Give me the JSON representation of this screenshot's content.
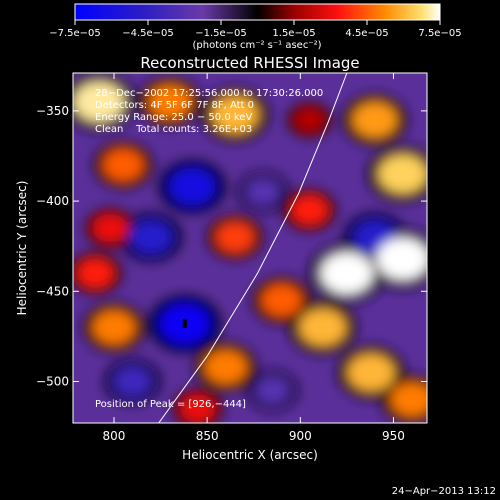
{
  "chart_data": {
    "type": "heatmap",
    "title": "Reconstructed RHESSI Image",
    "xlabel": "Heliocentric X (arcsec)",
    "ylabel": "Heliocentric Y (arcsec)",
    "xlim": [
      778,
      968
    ],
    "ylim": [
      -523,
      -329
    ],
    "x_ticks": [
      800,
      850,
      900,
      950
    ],
    "x_tick_labels": [
      "800",
      "850",
      "900",
      "950"
    ],
    "y_ticks": [
      -350,
      -400,
      -450,
      -500
    ],
    "y_tick_labels": [
      "−350",
      "−400",
      "−450",
      "−500"
    ],
    "colorbar": {
      "range": [
        -7.5e-05,
        7.5e-05
      ],
      "ticks": [
        -7.5e-05,
        -4.5e-05,
        -1.5e-05,
        1.5e-05,
        4.5e-05,
        7.5e-05
      ],
      "tick_labels": [
        "−7.5e−05",
        "−4.5e−05",
        "−1.5e−05",
        "1.5e−05",
        "4.5e−05",
        "7.5e−05"
      ],
      "unit_label": "(photons cm⁻² s⁻¹ asec⁻²)"
    },
    "annotations": [
      "28−Dec−2002 17:25:56.000 to 17:30:26.000",
      "Detectors: 4F 5F 6F 7F 8F, Att 0",
      "Energy Range: 25.0 − 50.0 keV",
      "Clean    Total counts: 3.26E+03"
    ],
    "peak_label": "Position of Peak = [926,−444]",
    "peak_position": [
      926,
      -444
    ],
    "limb": [
      [
        824,
        -523
      ],
      [
        850,
        -486
      ],
      [
        877,
        -440
      ],
      [
        899,
        -396
      ],
      [
        915,
        -356
      ],
      [
        925,
        -329
      ]
    ],
    "blobs": [
      {
        "x": 792,
        "y": -345,
        "v": 7e-05
      },
      {
        "x": 830,
        "y": -345,
        "v": 5e-05
      },
      {
        "x": 865,
        "y": -352,
        "v": 6e-05
      },
      {
        "x": 805,
        "y": -380,
        "v": 4.5e-05
      },
      {
        "x": 842,
        "y": -392,
        "v": -6e-05
      },
      {
        "x": 820,
        "y": -420,
        "v": -5e-05
      },
      {
        "x": 798,
        "y": -415,
        "v": 3e-05
      },
      {
        "x": 865,
        "y": -420,
        "v": 4e-05
      },
      {
        "x": 905,
        "y": -355,
        "v": 2e-05
      },
      {
        "x": 940,
        "y": -355,
        "v": 5.5e-05
      },
      {
        "x": 955,
        "y": -385,
        "v": 6.5e-05
      },
      {
        "x": 940,
        "y": -420,
        "v": -5e-05
      },
      {
        "x": 955,
        "y": -432,
        "v": 7.5e-05
      },
      {
        "x": 925,
        "y": -440,
        "v": 7.5e-05
      },
      {
        "x": 890,
        "y": -455,
        "v": 4.5e-05
      },
      {
        "x": 912,
        "y": -470,
        "v": 6e-05
      },
      {
        "x": 938,
        "y": -495,
        "v": 6e-05
      },
      {
        "x": 885,
        "y": -505,
        "v": -3e-05
      },
      {
        "x": 860,
        "y": -492,
        "v": 5e-05
      },
      {
        "x": 838,
        "y": -468,
        "v": -7e-05
      },
      {
        "x": 800,
        "y": -470,
        "v": 5e-05
      },
      {
        "x": 790,
        "y": -440,
        "v": 3.5e-05
      },
      {
        "x": 810,
        "y": -500,
        "v": -4e-05
      },
      {
        "x": 845,
        "y": -515,
        "v": 3e-05
      },
      {
        "x": 905,
        "y": -405,
        "v": 3.5e-05
      },
      {
        "x": 880,
        "y": -395,
        "v": -3e-05
      },
      {
        "x": 960,
        "y": -510,
        "v": 5e-05
      }
    ]
  },
  "timestamp": "24−Apr−2013 13:12"
}
